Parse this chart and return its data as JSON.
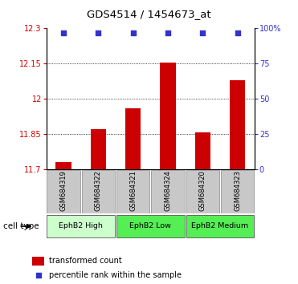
{
  "title": "GDS4514 / 1454673_at",
  "samples": [
    "GSM684319",
    "GSM684322",
    "GSM684321",
    "GSM684324",
    "GSM684320",
    "GSM684323"
  ],
  "bar_values": [
    11.73,
    11.87,
    11.96,
    12.155,
    11.855,
    12.08
  ],
  "dot_values": [
    97,
    97,
    97,
    97,
    97,
    97
  ],
  "ylim_left": [
    11.7,
    12.3
  ],
  "ylim_right": [
    0,
    100
  ],
  "yticks_left": [
    11.7,
    11.85,
    12.0,
    12.15,
    12.3
  ],
  "yticks_right": [
    0,
    25,
    50,
    75,
    100
  ],
  "ytick_labels_left": [
    "11.7",
    "11.85",
    "12",
    "12.15",
    "12.3"
  ],
  "ytick_labels_right": [
    "0",
    "25",
    "50",
    "75",
    "100%"
  ],
  "bar_color": "#cc0000",
  "dot_color": "#3333cc",
  "bar_baseline": 11.7,
  "grid_ticks": [
    11.85,
    12.0,
    12.15
  ],
  "sample_box_color": "#c8c8c8",
  "group_defs": [
    {
      "label": "EphB2 High",
      "start": 0,
      "end": 1,
      "color": "#ccffcc"
    },
    {
      "label": "EphB2 Low",
      "start": 2,
      "end": 3,
      "color": "#55ee55"
    },
    {
      "label": "EphB2 Medium",
      "start": 4,
      "end": 5,
      "color": "#55ee55"
    }
  ],
  "legend_items": [
    {
      "color": "#cc0000",
      "label": "transformed count"
    },
    {
      "color": "#3333cc",
      "label": "percentile rank within the sample"
    }
  ],
  "cell_type_label": "cell type"
}
